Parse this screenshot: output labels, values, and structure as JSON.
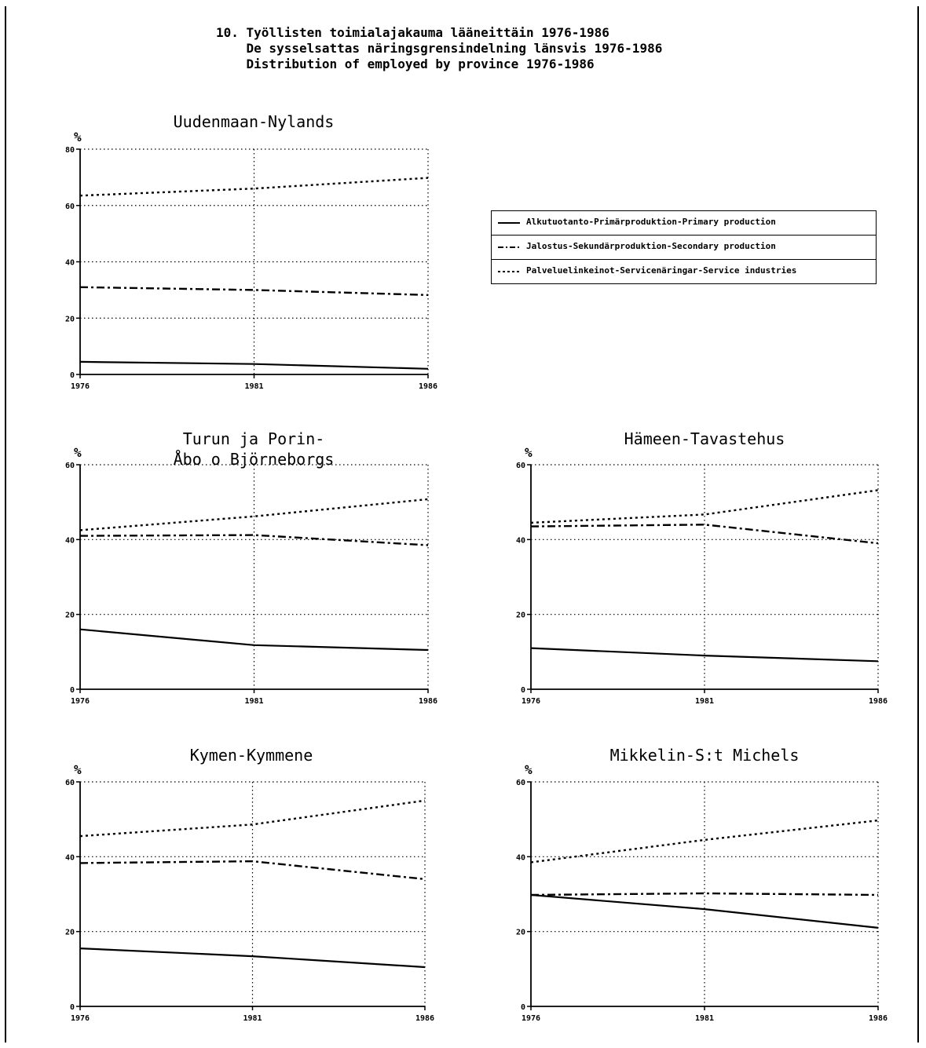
{
  "title_lines": [
    "10. Työllisten toimialajakauma lääneittäin 1976-1986",
    "    De sysselsattas näringsgrensindelning länsvis 1976-1986",
    "    Distribution of employed by province 1976-1986"
  ],
  "legend": [
    {
      "label": "Alkutuotanto-Primärproduktion-Primary production",
      "style": "solid"
    },
    {
      "label": "Jalostus-Sekundärproduktion-Secondary production",
      "style": "dashdot"
    },
    {
      "label": "Palveluelinkeinot-Servicenäringar-Service industries",
      "style": "dotted"
    }
  ],
  "colors": {
    "ink": "#000000",
    "grid": "#000000",
    "background": "#ffffff"
  },
  "chart_data": [
    {
      "type": "line",
      "title": "Uudenmaan-Nylands",
      "ylabel": "%",
      "x": [
        1976,
        1981,
        1986
      ],
      "x_ticks": [
        "1976",
        "1981",
        "1986"
      ],
      "ylim": [
        0,
        80
      ],
      "y_ticks": [
        "0",
        "20",
        "40",
        "60",
        "80"
      ],
      "grid": true,
      "series": [
        {
          "name": "Alkutuotanto-Primärproduktion-Primary production",
          "style": "solid",
          "values": [
            4.5,
            3.7,
            2
          ]
        },
        {
          "name": "Jalostus-Sekundärproduktion-Secondary production",
          "style": "dashdot",
          "values": [
            31,
            30,
            28.2
          ]
        },
        {
          "name": "Palveluelinkeinot-Servicenäringar-Service industries",
          "style": "dotted",
          "values": [
            63.5,
            66,
            69.8
          ]
        }
      ]
    },
    {
      "type": "line",
      "title": [
        "Turun ja Porin-",
        "Åbo o Björneborgs"
      ],
      "ylabel": "%",
      "x": [
        1976,
        1981,
        1986
      ],
      "x_ticks": [
        "1976",
        "1981",
        "1986"
      ],
      "ylim": [
        0,
        60
      ],
      "y_ticks": [
        "0",
        "20",
        "40",
        "60"
      ],
      "grid": true,
      "series": [
        {
          "name": "Alkutuotanto-Primärproduktion-Primary production",
          "style": "solid",
          "values": [
            16,
            11.8,
            10.5
          ]
        },
        {
          "name": "Jalostus-Sekundärproduktion-Secondary production",
          "style": "dashdot",
          "values": [
            41,
            41.2,
            38.5
          ]
        },
        {
          "name": "Palveluelinkeinot-Servicenäringar-Service industries",
          "style": "dotted",
          "values": [
            42.5,
            46.2,
            50.8
          ]
        }
      ]
    },
    {
      "type": "line",
      "title": "Hämeen-Tavastehus",
      "ylabel": "%",
      "x": [
        1976,
        1981,
        1986
      ],
      "x_ticks": [
        "1976",
        "1981",
        "1986"
      ],
      "ylim": [
        0,
        60
      ],
      "y_ticks": [
        "0",
        "20",
        "40",
        "60"
      ],
      "grid": true,
      "series": [
        {
          "name": "Alkutuotanto-Primärproduktion-Primary production",
          "style": "solid",
          "values": [
            11,
            9,
            7.5
          ]
        },
        {
          "name": "Jalostus-Sekundärproduktion-Secondary production",
          "style": "dashdot",
          "values": [
            43.5,
            44,
            39
          ]
        },
        {
          "name": "Palveluelinkeinot-Servicenäringar-Service industries",
          "style": "dotted",
          "values": [
            44.5,
            46.7,
            53.2
          ]
        }
      ]
    },
    {
      "type": "line",
      "title": "Kymen-Kymmene",
      "ylabel": "%",
      "x": [
        1976,
        1981,
        1986
      ],
      "x_ticks": [
        "1976",
        "1981",
        "1986"
      ],
      "ylim": [
        0,
        60
      ],
      "y_ticks": [
        "0",
        "20",
        "40",
        "60"
      ],
      "grid": true,
      "series": [
        {
          "name": "Alkutuotanto-Primärproduktion-Primary production",
          "style": "solid",
          "values": [
            15.5,
            13.4,
            10.5
          ]
        },
        {
          "name": "Jalostus-Sekundärproduktion-Secondary production",
          "style": "dashdot",
          "values": [
            38.3,
            38.8,
            34
          ]
        },
        {
          "name": "Palveluelinkeinot-Servicenäringar-Service industries",
          "style": "dotted",
          "values": [
            45.5,
            48.6,
            55
          ]
        }
      ]
    },
    {
      "type": "line",
      "title": "Mikkelin-S:t Michels",
      "ylabel": "%",
      "x": [
        1976,
        1981,
        1986
      ],
      "x_ticks": [
        "1976",
        "1981",
        "1986"
      ],
      "ylim": [
        0,
        60
      ],
      "y_ticks": [
        "0",
        "20",
        "40",
        "60"
      ],
      "grid": true,
      "series": [
        {
          "name": "Alkutuotanto-Primärproduktion-Primary production",
          "style": "solid",
          "values": [
            29.8,
            26,
            21
          ]
        },
        {
          "name": "Jalostus-Sekundärproduktion-Secondary production",
          "style": "dashdot",
          "values": [
            29.8,
            30.2,
            29.8
          ]
        },
        {
          "name": "Palveluelinkeinot-Servicenäringar-Service industries",
          "style": "dotted",
          "values": [
            38.5,
            44.5,
            49.7
          ]
        }
      ]
    }
  ]
}
